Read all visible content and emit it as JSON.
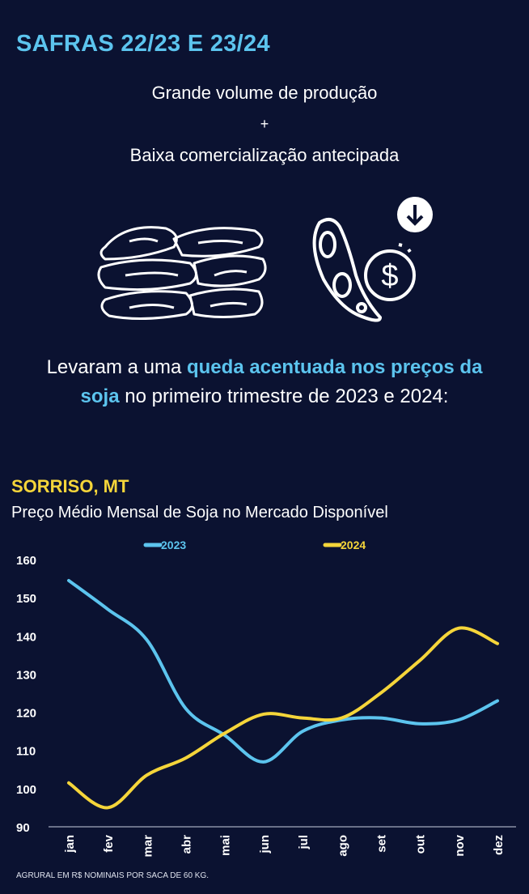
{
  "header": {
    "title": "SAFRAS 22/23 E 23/24",
    "line1": "Grande volume de produção",
    "plus": "+",
    "line2": "Baixa comercialização antecipada"
  },
  "icons": [
    "sacks-icon",
    "soybean-pod-icon",
    "dollar-coin-icon",
    "arrow-down-icon"
  ],
  "lead": {
    "part1": "Levaram a uma ",
    "highlight": "queda acentuada nos preços da soja",
    "part2": " no primeiro trimestre de 2023 e 2024:"
  },
  "location": "SORRISO, MT",
  "colors": {
    "bg": "#0b1231",
    "s2023": "#5cc4ee",
    "s2024": "#f5d53a"
  },
  "chart_data": {
    "type": "line",
    "title": "Preço Médio Mensal de Soja no Mercado Disponível",
    "categories": [
      "jan",
      "fev",
      "mar",
      "abr",
      "mai",
      "jun",
      "jul",
      "ago",
      "set",
      "out",
      "nov",
      "dez"
    ],
    "series": [
      {
        "name": "2023",
        "values": [
          154.5,
          147,
          139,
          121,
          114,
          107,
          115,
          118,
          118.5,
          117,
          118,
          123
        ]
      },
      {
        "name": "2024",
        "values": [
          101.5,
          95,
          103.5,
          108,
          114.5,
          119.5,
          118.5,
          118.5,
          125,
          133.5,
          142,
          138
        ]
      }
    ],
    "yticks": [
      "160",
      "150",
      "140",
      "130",
      "120",
      "110",
      "100",
      "90"
    ],
    "ylim": [
      90,
      160
    ],
    "legend": "top",
    "source": "AGRURAL  EM R$ NOMINAIS POR SACA DE 60 KG."
  }
}
